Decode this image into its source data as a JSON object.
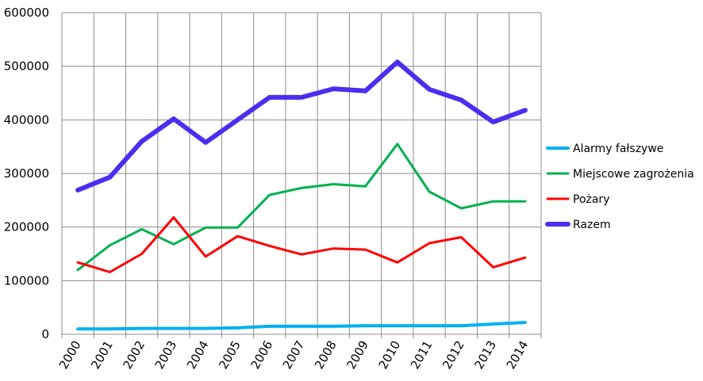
{
  "chart_data": {
    "type": "line",
    "title": "",
    "xlabel": "",
    "ylabel": "",
    "categories": [
      "2000",
      "2001",
      "2002",
      "2003",
      "2004",
      "2005",
      "2006",
      "2007",
      "2008",
      "2009",
      "2010",
      "2011",
      "2012",
      "2013",
      "2014"
    ],
    "ylim": [
      0,
      600000
    ],
    "yticks": [
      0,
      100000,
      200000,
      300000,
      400000,
      500000,
      600000
    ],
    "ytick_labels": [
      "0",
      "100000",
      "200000",
      "300000",
      "400000",
      "500000",
      "600000"
    ],
    "grid": true,
    "legend_position": "right",
    "series": [
      {
        "name": "Alarmy fałszywe",
        "color": "#00b0f0",
        "width": 4,
        "values": [
          10000,
          10000,
          11000,
          11000,
          11000,
          12000,
          15000,
          15000,
          15000,
          16000,
          16000,
          16000,
          16000,
          19000,
          22000
        ]
      },
      {
        "name": "Miejscowe zagrożenia",
        "color": "#00b050",
        "width": 3,
        "values": [
          120000,
          166000,
          196000,
          168000,
          199000,
          199000,
          260000,
          273000,
          280000,
          276000,
          355000,
          266000,
          235000,
          248000,
          248000
        ]
      },
      {
        "name": "Pożary",
        "color": "#ff0000",
        "width": 3,
        "values": [
          134000,
          116000,
          150000,
          218000,
          145000,
          183000,
          165000,
          149000,
          160000,
          158000,
          134000,
          170000,
          181000,
          125000,
          143000
        ]
      },
      {
        "name": "Razem",
        "color": "#4a2ef0",
        "width": 6,
        "values": [
          269000,
          293000,
          360000,
          402000,
          358000,
          400000,
          442000,
          442000,
          458000,
          454000,
          508000,
          457000,
          437000,
          396000,
          418000
        ]
      }
    ]
  }
}
